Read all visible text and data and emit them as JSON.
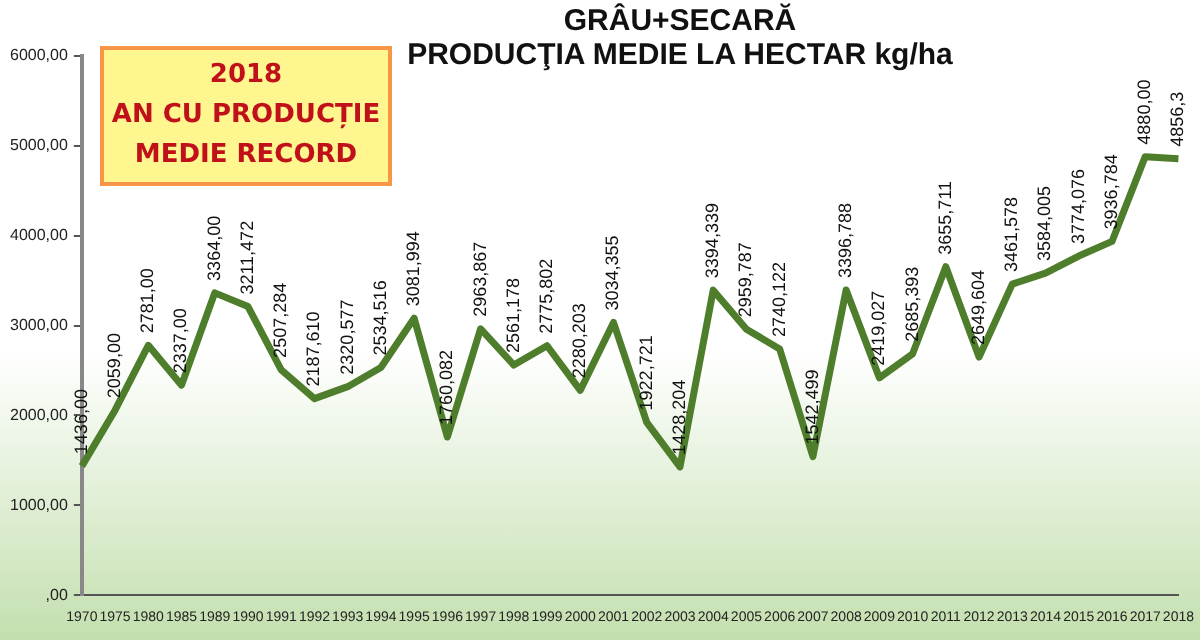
{
  "chart_data": {
    "type": "line",
    "title": "GRÂU+SECARĂ",
    "subtitle": "PRODUCŢIA MEDIE LA HECTAR kg/ha",
    "annotations": [
      "2018\nAN CU PRODUCȚIE\nMEDIE RECORD"
    ],
    "categories": [
      "1970",
      "1975",
      "1980",
      "1985",
      "1989",
      "1990",
      "1991",
      "1992",
      "1993",
      "1994",
      "1995",
      "1996",
      "1997",
      "1998",
      "1999",
      "2000",
      "2001",
      "2002",
      "2003",
      "2004",
      "2005",
      "2006",
      "2007",
      "2008",
      "2009",
      "2010",
      "2011",
      "2012",
      "2013",
      "2014",
      "2015",
      "2016",
      "2017",
      "2018"
    ],
    "series": [
      {
        "color": "#4e7d2c",
        "values": [
          1436,
          2059,
          2781,
          2337,
          3364,
          3211.472,
          2507.284,
          2187.61,
          2320.577,
          2534.516,
          3081.994,
          1760.082,
          2963.867,
          2561.178,
          2775.802,
          2280.203,
          3034.355,
          1922.721,
          1428.204,
          3394.339,
          2959.787,
          2740.122,
          1542.499,
          3396.788,
          2419.027,
          2685.393,
          3655.711,
          2649.604,
          3461.578,
          3584.005,
          3774.076,
          3936.784,
          4880,
          4856.3
        ],
        "value_labels": [
          "1436,00",
          "2059,00",
          "2781,00",
          "2337,00",
          "3364,00",
          "3211,472",
          "2507,284",
          "2187,610",
          "2320,577",
          "2534,516",
          "3081,994",
          "1760,082",
          "2963,867",
          "2561,178",
          "2775,802",
          "2280,203",
          "3034,355",
          "1922,721",
          "1428,204",
          "3394,339",
          "2959,787",
          "2740,122",
          "1542,499",
          "3396,788",
          "2419,027",
          "2685,393",
          "3655,711",
          "2649,604",
          "3461,578",
          "3584,005",
          "3774,076",
          "3936,784",
          "4880,00",
          "4856,3"
        ]
      }
    ],
    "ylim": [
      0,
      6000
    ],
    "yticks": [
      {
        "value": 0,
        "label": ",00"
      },
      {
        "value": 1000,
        "label": "1000,00"
      },
      {
        "value": 2000,
        "label": "2000,00"
      },
      {
        "value": 3000,
        "label": "3000,00"
      },
      {
        "value": 4000,
        "label": "4000,00"
      },
      {
        "value": 5000,
        "label": "5000,00"
      },
      {
        "value": 6000,
        "label": "6000,00"
      }
    ],
    "grid": false,
    "legend": false,
    "marker": "none",
    "line_style": "solid"
  }
}
